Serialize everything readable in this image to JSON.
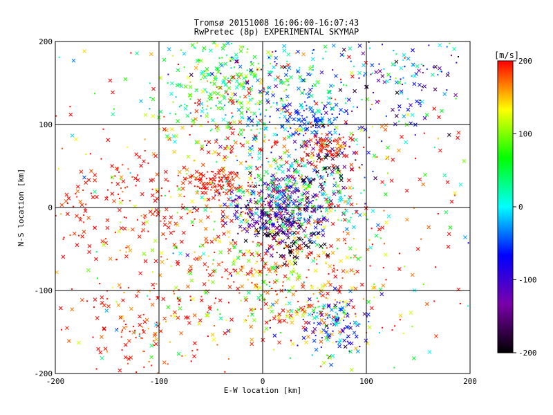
{
  "chart_data": {
    "type": "scatter",
    "title": "Tromsø 20151008 16:06:00-16:07:43",
    "subtitle": "RwPretec (8p) EXPERIMENTAL SKYMAP",
    "xlabel": "E-W location [km]",
    "ylabel": "N-S location [km]",
    "xlim": [
      -200,
      200
    ],
    "ylim": [
      -200,
      200
    ],
    "xticks": [
      -200,
      -100,
      0,
      100,
      200
    ],
    "yticks": [
      -200,
      -100,
      0,
      100,
      200
    ],
    "grid": true,
    "colorbar": {
      "label": "[m/s]",
      "range": [
        -200,
        200
      ],
      "ticks": [
        200,
        100,
        0,
        -100,
        -200
      ],
      "stops": [
        "#000000",
        "#7a00a8",
        "#0000ff",
        "#00ffff",
        "#00ff00",
        "#ffff00",
        "#ff0000"
      ]
    },
    "markers": [
      "cross",
      "dot"
    ],
    "clusters": [
      {
        "x": 0,
        "y": 0,
        "sx": 70,
        "sy": 85,
        "v": 180,
        "vs": 80,
        "n": 700
      },
      {
        "x": -120,
        "y": -150,
        "sx": 30,
        "sy": 30,
        "v": 190,
        "vs": 20,
        "n": 120
      },
      {
        "x": -140,
        "y": 0,
        "sx": 45,
        "sy": 35,
        "v": 195,
        "vs": 10,
        "n": 140
      },
      {
        "x": -45,
        "y": 30,
        "sx": 15,
        "sy": 8,
        "v": 200,
        "vs": 10,
        "n": 90
      },
      {
        "x": -40,
        "y": 150,
        "sx": 35,
        "sy": 30,
        "v": 60,
        "vs": 50,
        "n": 220
      },
      {
        "x": 20,
        "y": 130,
        "sx": 40,
        "sy": 40,
        "v": -20,
        "vs": 60,
        "n": 220
      },
      {
        "x": 130,
        "y": 160,
        "sx": 40,
        "sy": 35,
        "v": -80,
        "vs": 80,
        "n": 160
      },
      {
        "x": 15,
        "y": -5,
        "sx": 22,
        "sy": 20,
        "v": -120,
        "vs": 40,
        "n": 320
      },
      {
        "x": 30,
        "y": 20,
        "sx": 35,
        "sy": 25,
        "v": 20,
        "vs": 50,
        "n": 200
      },
      {
        "x": 60,
        "y": 50,
        "sx": 15,
        "sy": 25,
        "v": -170,
        "vs": 30,
        "n": 90
      },
      {
        "x": 60,
        "y": 70,
        "sx": 10,
        "sy": 10,
        "v": 190,
        "vs": 10,
        "n": 60
      },
      {
        "x": 40,
        "y": 105,
        "sx": 20,
        "sy": 10,
        "v": -60,
        "vs": 20,
        "n": 80
      },
      {
        "x": 70,
        "y": -140,
        "sx": 15,
        "sy": 18,
        "v": -60,
        "vs": 60,
        "n": 120
      },
      {
        "x": 30,
        "y": -100,
        "sx": 40,
        "sy": 35,
        "v": 150,
        "vs": 60,
        "n": 240
      },
      {
        "x": 30,
        "y": -40,
        "sx": 15,
        "sy": 15,
        "v": -200,
        "vs": 10,
        "n": 60
      },
      {
        "x": 0,
        "y": 0,
        "sx": 200,
        "sy": 200,
        "v": 120,
        "vs": 120,
        "n": 500
      }
    ]
  }
}
